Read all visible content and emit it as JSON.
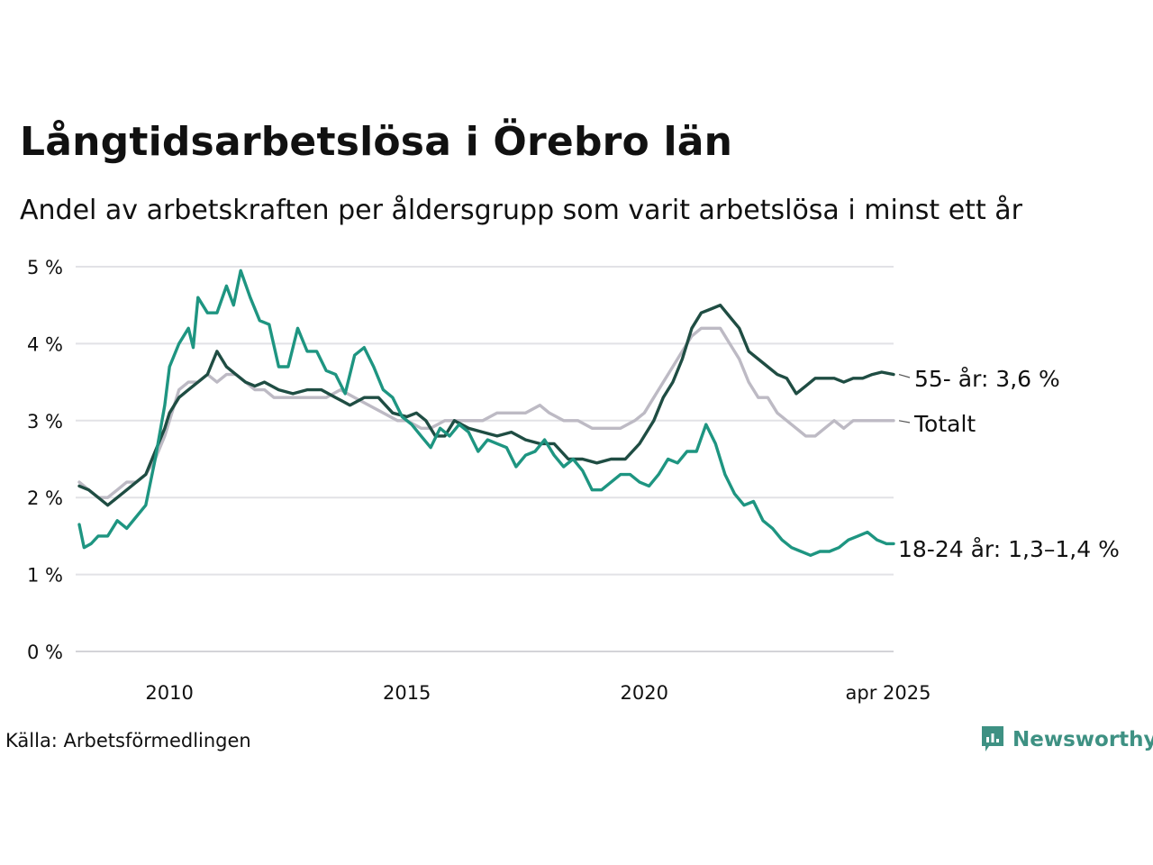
{
  "title": "Långtidsarbetslösa i Örebro län",
  "subtitle": "Andel av arbetskraften per åldersgrupp som varit arbetslösa i minst ett år",
  "source": "Källa: Arbetsförmedlingen",
  "brand": {
    "name": "Newsworthy",
    "icon": "newsworthy-logo-icon",
    "color": "#3e9183"
  },
  "chart_data": {
    "type": "line",
    "title": "Långtidsarbetslösa i Örebro län",
    "subtitle": "Andel av arbetskraften per åldersgrupp som varit arbetslösa i minst ett år",
    "xlim": [
      2008.1,
      2025.25
    ],
    "ylim": [
      0,
      5
    ],
    "grid": true,
    "legend": "inline-right",
    "x_ticks": [
      {
        "value": 2010,
        "label": "2010"
      },
      {
        "value": 2015,
        "label": "2015"
      },
      {
        "value": 2020,
        "label": "2020"
      },
      {
        "value": 2025.25,
        "label": "apr 2025"
      }
    ],
    "y_ticks": [
      {
        "value": 0,
        "label": "0 %"
      },
      {
        "value": 1,
        "label": "1 %"
      },
      {
        "value": 2,
        "label": "2 %"
      },
      {
        "value": 3,
        "label": "3 %"
      },
      {
        "value": 4,
        "label": "4 %"
      },
      {
        "value": 5,
        "label": "5 %"
      }
    ],
    "series": [
      {
        "name": "Totalt",
        "label": "Totalt",
        "color": "#bdbac4",
        "x": [
          2008.1,
          2008.3,
          2008.5,
          2008.7,
          2008.9,
          2009.1,
          2009.3,
          2009.5,
          2009.7,
          2009.9,
          2010.0,
          2010.2,
          2010.4,
          2010.6,
          2010.8,
          2011.0,
          2011.2,
          2011.4,
          2011.6,
          2011.8,
          2012.0,
          2012.2,
          2012.5,
          2012.8,
          2013.0,
          2013.3,
          2013.6,
          2013.9,
          2014.2,
          2014.5,
          2014.8,
          2015.0,
          2015.3,
          2015.5,
          2015.8,
          2016.0,
          2016.3,
          2016.6,
          2016.9,
          2017.2,
          2017.5,
          2017.8,
          2018.0,
          2018.3,
          2018.6,
          2018.9,
          2019.2,
          2019.5,
          2019.8,
          2020.0,
          2020.2,
          2020.4,
          2020.6,
          2020.8,
          2021.0,
          2021.2,
          2021.4,
          2021.6,
          2021.8,
          2022.0,
          2022.2,
          2022.4,
          2022.6,
          2022.8,
          2023.0,
          2023.2,
          2023.4,
          2023.6,
          2023.8,
          2024.0,
          2024.2,
          2024.4,
          2024.6,
          2024.8,
          2025.0,
          2025.25
        ],
        "y": [
          2.2,
          2.1,
          2.0,
          2.0,
          2.1,
          2.2,
          2.2,
          2.3,
          2.5,
          2.8,
          3.0,
          3.4,
          3.5,
          3.5,
          3.6,
          3.5,
          3.6,
          3.6,
          3.5,
          3.4,
          3.4,
          3.3,
          3.3,
          3.3,
          3.3,
          3.3,
          3.4,
          3.3,
          3.2,
          3.1,
          3.0,
          3.0,
          2.9,
          2.9,
          3.0,
          3.0,
          3.0,
          3.0,
          3.1,
          3.1,
          3.1,
          3.2,
          3.1,
          3.0,
          3.0,
          2.9,
          2.9,
          2.9,
          3.0,
          3.1,
          3.3,
          3.5,
          3.7,
          3.9,
          4.1,
          4.2,
          4.2,
          4.2,
          4.0,
          3.8,
          3.5,
          3.3,
          3.3,
          3.1,
          3.0,
          2.9,
          2.8,
          2.8,
          2.9,
          3.0,
          2.9,
          3.0,
          3.0,
          3.0,
          3.0,
          3.0
        ]
      },
      {
        "name": "55- år",
        "label": "55- år: 3,6 %",
        "color": "#1f4d43",
        "x": [
          2008.1,
          2008.3,
          2008.5,
          2008.7,
          2008.9,
          2009.1,
          2009.3,
          2009.5,
          2009.7,
          2009.9,
          2010.0,
          2010.2,
          2010.4,
          2010.6,
          2010.8,
          2011.0,
          2011.2,
          2011.4,
          2011.6,
          2011.8,
          2012.0,
          2012.3,
          2012.6,
          2012.9,
          2013.2,
          2013.5,
          2013.8,
          2014.1,
          2014.4,
          2014.7,
          2015.0,
          2015.2,
          2015.4,
          2015.6,
          2015.8,
          2016.0,
          2016.3,
          2016.6,
          2016.9,
          2017.2,
          2017.5,
          2017.8,
          2018.1,
          2018.4,
          2018.7,
          2019.0,
          2019.3,
          2019.6,
          2019.9,
          2020.2,
          2020.4,
          2020.6,
          2020.8,
          2021.0,
          2021.2,
          2021.4,
          2021.6,
          2021.8,
          2022.0,
          2022.2,
          2022.4,
          2022.6,
          2022.8,
          2023.0,
          2023.2,
          2023.4,
          2023.6,
          2023.8,
          2024.0,
          2024.2,
          2024.4,
          2024.6,
          2024.8,
          2025.0,
          2025.25
        ],
        "y": [
          2.15,
          2.1,
          2.0,
          1.9,
          2.0,
          2.1,
          2.2,
          2.3,
          2.6,
          2.9,
          3.1,
          3.3,
          3.4,
          3.5,
          3.6,
          3.9,
          3.7,
          3.6,
          3.5,
          3.45,
          3.5,
          3.4,
          3.35,
          3.4,
          3.4,
          3.3,
          3.2,
          3.3,
          3.3,
          3.1,
          3.05,
          3.1,
          3.0,
          2.8,
          2.8,
          3.0,
          2.9,
          2.85,
          2.8,
          2.85,
          2.75,
          2.7,
          2.7,
          2.5,
          2.5,
          2.45,
          2.5,
          2.5,
          2.7,
          3.0,
          3.3,
          3.5,
          3.8,
          4.2,
          4.4,
          4.45,
          4.5,
          4.35,
          4.2,
          3.9,
          3.8,
          3.7,
          3.6,
          3.55,
          3.35,
          3.45,
          3.55,
          3.55,
          3.55,
          3.5,
          3.55,
          3.55,
          3.6,
          3.63,
          3.6
        ]
      },
      {
        "name": "18-24 år",
        "label": "18-24 år: 1,3–1,4 %",
        "color": "#1e9581",
        "x": [
          2008.1,
          2008.2,
          2008.35,
          2008.5,
          2008.7,
          2008.9,
          2009.1,
          2009.3,
          2009.5,
          2009.7,
          2009.9,
          2010.0,
          2010.2,
          2010.4,
          2010.5,
          2010.6,
          2010.8,
          2011.0,
          2011.2,
          2011.35,
          2011.5,
          2011.7,
          2011.9,
          2012.1,
          2012.3,
          2012.5,
          2012.7,
          2012.9,
          2013.1,
          2013.3,
          2013.5,
          2013.7,
          2013.9,
          2014.1,
          2014.3,
          2014.5,
          2014.7,
          2014.9,
          2015.1,
          2015.3,
          2015.5,
          2015.7,
          2015.9,
          2016.1,
          2016.3,
          2016.5,
          2016.7,
          2016.9,
          2017.1,
          2017.3,
          2017.5,
          2017.7,
          2017.9,
          2018.1,
          2018.3,
          2018.5,
          2018.7,
          2018.9,
          2019.1,
          2019.3,
          2019.5,
          2019.7,
          2019.9,
          2020.1,
          2020.3,
          2020.5,
          2020.7,
          2020.9,
          2021.1,
          2021.3,
          2021.5,
          2021.7,
          2021.9,
          2022.1,
          2022.3,
          2022.5,
          2022.7,
          2022.9,
          2023.1,
          2023.3,
          2023.5,
          2023.7,
          2023.9,
          2024.1,
          2024.3,
          2024.5,
          2024.7,
          2024.9,
          2025.1,
          2025.25
        ],
        "y": [
          1.65,
          1.35,
          1.4,
          1.5,
          1.5,
          1.7,
          1.6,
          1.75,
          1.9,
          2.5,
          3.2,
          3.7,
          4.0,
          4.2,
          3.95,
          4.6,
          4.4,
          4.4,
          4.75,
          4.5,
          4.95,
          4.6,
          4.3,
          4.25,
          3.7,
          3.7,
          4.2,
          3.9,
          3.9,
          3.65,
          3.6,
          3.35,
          3.85,
          3.95,
          3.7,
          3.4,
          3.3,
          3.05,
          2.95,
          2.8,
          2.65,
          2.9,
          2.8,
          2.95,
          2.85,
          2.6,
          2.75,
          2.7,
          2.65,
          2.4,
          2.55,
          2.6,
          2.75,
          2.55,
          2.4,
          2.5,
          2.35,
          2.1,
          2.1,
          2.2,
          2.3,
          2.3,
          2.2,
          2.15,
          2.3,
          2.5,
          2.45,
          2.6,
          2.6,
          2.95,
          2.7,
          2.3,
          2.05,
          1.9,
          1.95,
          1.7,
          1.6,
          1.45,
          1.35,
          1.3,
          1.25,
          1.3,
          1.3,
          1.35,
          1.45,
          1.5,
          1.55,
          1.45,
          1.4,
          1.4
        ]
      }
    ]
  }
}
